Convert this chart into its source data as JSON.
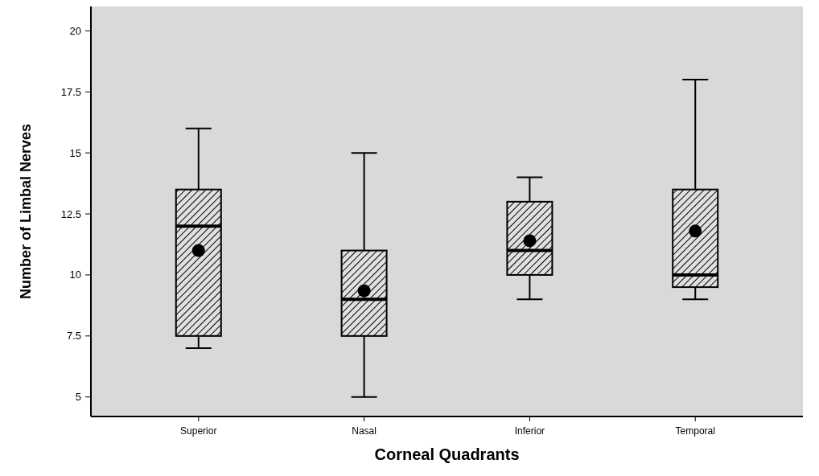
{
  "chart_data": {
    "type": "box",
    "xlabel": "Corneal Quadrants",
    "ylabel": "Number of Limbal Nerves",
    "categories": [
      "Superior",
      "Nasal",
      "Inferior",
      "Temporal"
    ],
    "boxes": [
      {
        "low": 7,
        "q1": 7.5,
        "median": 12,
        "q3": 13.5,
        "high": 16,
        "mean": 11
      },
      {
        "low": 5,
        "q1": 7.5,
        "median": 9,
        "q3": 11,
        "high": 15,
        "mean": 9.35
      },
      {
        "low": 9,
        "q1": 10,
        "median": 11,
        "q3": 13,
        "high": 14,
        "mean": 11.4
      },
      {
        "low": 9,
        "q1": 9.5,
        "median": 10,
        "q3": 13.5,
        "high": 18,
        "mean": 11.8
      }
    ],
    "ylim": [
      4.2,
      21
    ],
    "yticks": [
      5,
      7.5,
      10,
      12.5,
      15,
      17.5,
      20
    ],
    "grid": false,
    "marker": "circle"
  }
}
